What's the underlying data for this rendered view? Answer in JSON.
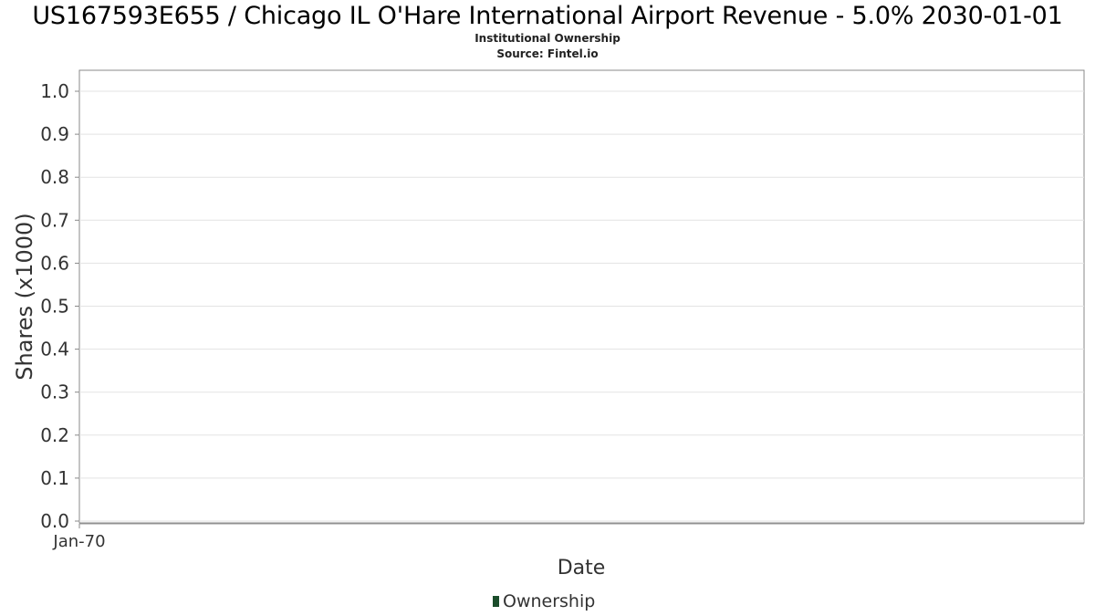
{
  "chart_data": {
    "type": "area",
    "title": "US167593E655 / Chicago IL O'Hare International Airport Revenue - 5.0% 2030-01-01",
    "subtitle_lines": [
      "Institutional Ownership",
      "Source: Fintel.io"
    ],
    "xlabel": "Date",
    "ylabel": "Shares (x1000)",
    "x_tick_labels": [
      "Jan-70"
    ],
    "y_ticks": [
      "0.0",
      "0.1",
      "0.2",
      "0.3",
      "0.4",
      "0.5",
      "0.6",
      "0.7",
      "0.8",
      "0.9",
      "1.0"
    ],
    "ylim": [
      0,
      1.0
    ],
    "grid": true,
    "legend_position": "bottom-center",
    "series": [
      {
        "name": "Ownership",
        "color": "#1b4d2b",
        "x": [],
        "values": []
      }
    ]
  }
}
